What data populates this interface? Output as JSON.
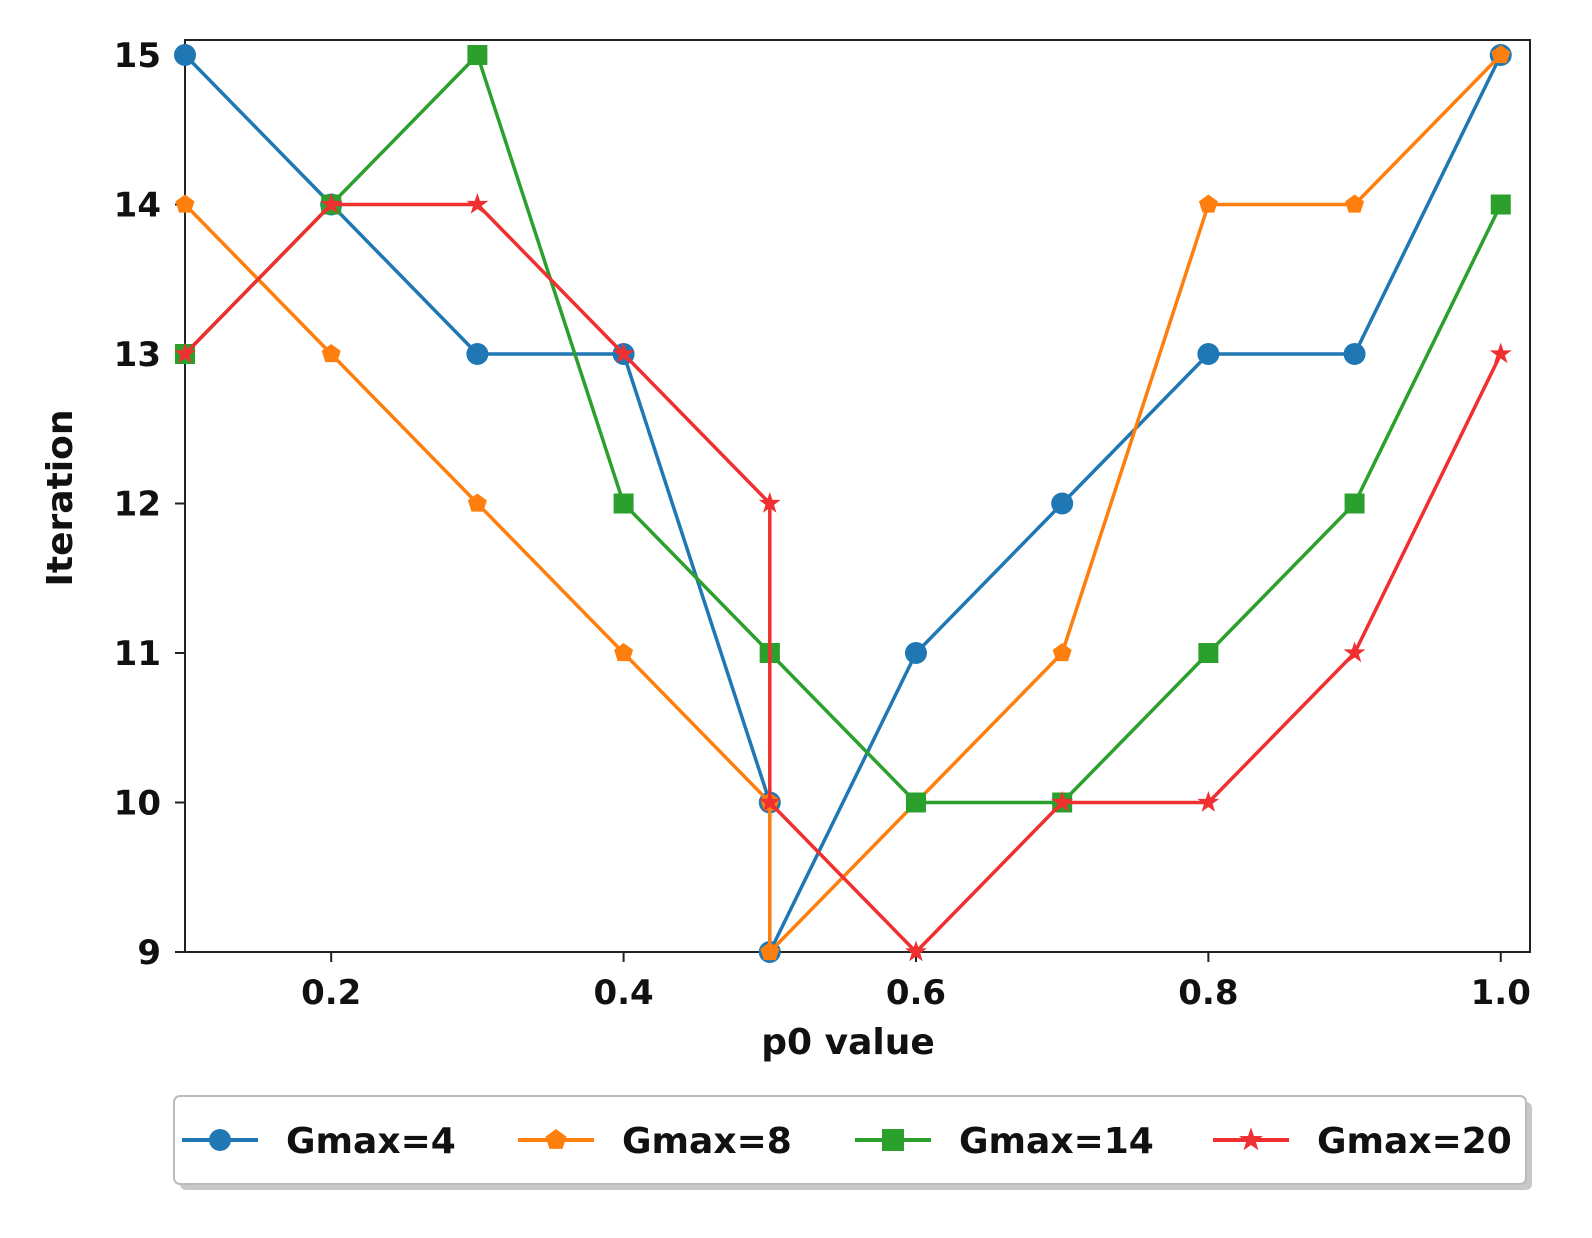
{
  "chart_data": {
    "type": "line",
    "title": "",
    "xlabel": "p0 value",
    "ylabel": "Iteration",
    "xlim": [
      0.1,
      1.02
    ],
    "ylim": [
      9,
      15.1
    ],
    "x": [
      0.1,
      0.2,
      0.3,
      0.4,
      0.5,
      0.5,
      0.6,
      0.7,
      0.8,
      0.9,
      1.0
    ],
    "xticks": [
      0.2,
      0.4,
      0.6,
      0.8,
      1.0
    ],
    "xtick_labels": [
      "0.2",
      "0.4",
      "0.6",
      "0.8",
      "1.0"
    ],
    "yticks": [
      9,
      10,
      11,
      12,
      13,
      14,
      15
    ],
    "ytick_labels": [
      "9",
      "10",
      "11",
      "12",
      "13",
      "14",
      "15"
    ],
    "grid": false,
    "legend_position": "bottom-center",
    "series": [
      {
        "name": "Gmax=4",
        "color": "#1f77b4",
        "marker": "circle",
        "values": [
          15,
          14,
          13,
          13,
          10,
          9,
          11,
          12,
          13,
          13,
          15
        ]
      },
      {
        "name": "Gmax=8",
        "color": "#ff7f0e",
        "marker": "pentagon",
        "values": [
          14,
          13,
          12,
          11,
          10,
          9,
          10,
          11,
          14,
          14,
          15
        ]
      },
      {
        "name": "Gmax=14",
        "color": "#2ca02c",
        "marker": "square",
        "values": [
          13,
          14,
          15,
          12,
          11,
          11,
          10,
          10,
          11,
          12,
          14
        ]
      },
      {
        "name": "Gmax=20",
        "color": "#f03030",
        "marker": "star",
        "values": [
          13,
          14,
          14,
          13,
          12,
          10,
          9,
          10,
          10,
          11,
          13
        ]
      }
    ]
  }
}
